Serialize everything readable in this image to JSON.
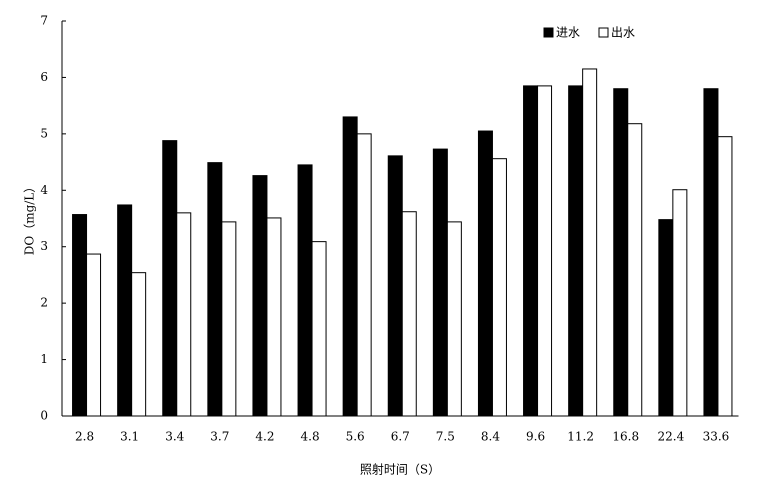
{
  "chart_data": {
    "type": "bar",
    "x_label": "照射时间（S）",
    "y_label": "DO（mg/L）",
    "categories": [
      "2.8",
      "3.1",
      "3.4",
      "3.7",
      "4.2",
      "4.8",
      "5.6",
      "6.7",
      "7.5",
      "8.4",
      "9.6",
      "11.2",
      "16.8",
      "22.4",
      "33.6"
    ],
    "series": [
      {
        "name": "进水",
        "color": "#000000",
        "values": [
          3.57,
          3.74,
          4.88,
          4.49,
          4.26,
          4.45,
          5.3,
          4.61,
          4.73,
          5.05,
          5.85,
          5.85,
          5.8,
          3.48,
          5.8
        ]
      },
      {
        "name": "出水",
        "color": "#ffffff",
        "values": [
          2.87,
          2.54,
          3.6,
          3.44,
          3.51,
          3.09,
          5.0,
          3.62,
          3.44,
          4.56,
          5.85,
          6.15,
          5.18,
          4.01,
          4.95
        ]
      }
    ],
    "ylim": [
      0,
      7
    ],
    "yticks": [
      0,
      1,
      2,
      3,
      4,
      5,
      6,
      7
    ],
    "grid": false,
    "legend": "top-right"
  }
}
